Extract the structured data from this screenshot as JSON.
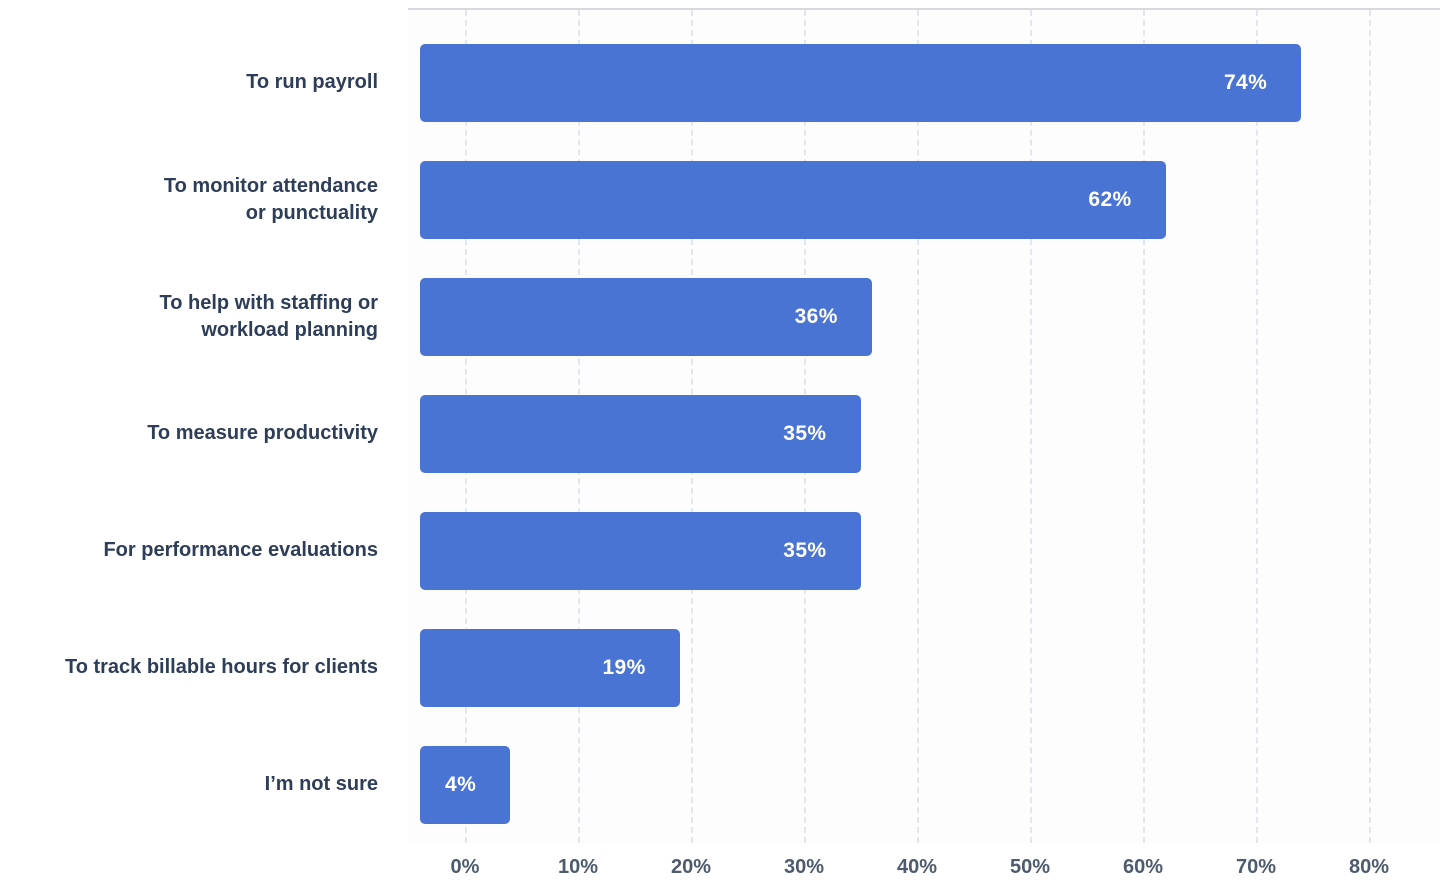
{
  "chart_data": {
    "type": "bar",
    "orientation": "horizontal",
    "categories": [
      "To run payroll",
      "To monitor attendance or punctuality",
      "To help with staffing or workload planning",
      "To measure productivity",
      "For performance evaluations",
      "To track billable hours for clients",
      "I’m not sure"
    ],
    "category_lines": [
      [
        "To run payroll"
      ],
      [
        "To monitor attendance",
        "or punctuality"
      ],
      [
        "To help with staffing or",
        "workload planning"
      ],
      [
        "To measure productivity"
      ],
      [
        "For performance evaluations"
      ],
      [
        "To track billable hours for clients"
      ],
      [
        "I’m not sure"
      ]
    ],
    "values": [
      74,
      62,
      36,
      35,
      35,
      19,
      4
    ],
    "value_labels": [
      "74%",
      "62%",
      "36%",
      "35%",
      "35%",
      "19%",
      "4%"
    ],
    "x_ticks": [
      "0%",
      "10%",
      "20%",
      "30%",
      "40%",
      "50%",
      "60%",
      "70%",
      "80%"
    ],
    "x_min": 0,
    "x_max": 80,
    "grid": "vertical-dashed",
    "legend": "none",
    "value_label_position": "inside-right"
  },
  "style": {
    "colors": {
      "bar": "#4a74d4",
      "category_text": "#2e3d58",
      "tick_text": "#4e5b6e",
      "grid": "#e3e6ec",
      "plot_border": "#d6dade",
      "plot_background": "#fdfdfe",
      "value_text": "#ffffff",
      "page_background": "#ffffff"
    }
  }
}
